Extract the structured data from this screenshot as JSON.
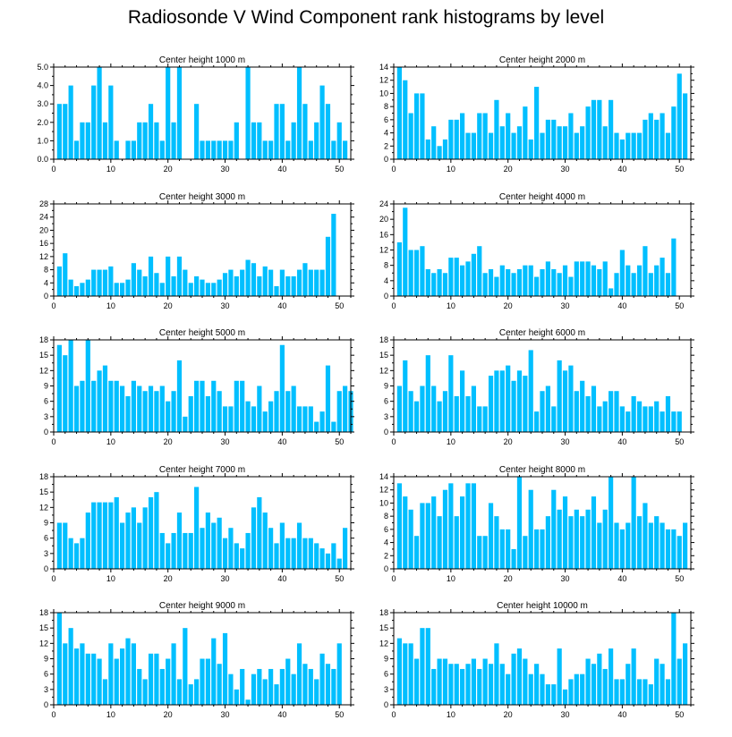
{
  "title": "Radiosonde V Wind Component rank histograms by level",
  "colors": {
    "bar": "#00bfff",
    "frame": "#000000"
  },
  "chart_data": [
    {
      "type": "bar",
      "title": "Center height 1000 m",
      "x_range": [
        0,
        52
      ],
      "xticks": [
        0,
        10,
        20,
        30,
        40,
        50
      ],
      "ylim": [
        0,
        5
      ],
      "yticks": [
        "0.0",
        "1.0",
        "2.0",
        "3.0",
        "4.0",
        "5.0"
      ],
      "values": [
        3,
        3,
        4,
        1,
        2,
        2,
        4,
        5,
        2,
        4,
        1,
        0,
        1,
        1,
        2,
        2,
        3,
        2,
        1,
        5,
        2,
        5,
        0,
        0,
        3,
        1,
        1,
        1,
        1,
        1,
        1,
        2,
        0,
        5,
        2,
        2,
        1,
        1,
        3,
        3,
        1,
        2,
        5,
        3,
        1,
        2,
        4,
        3,
        1,
        2,
        1
      ]
    },
    {
      "type": "bar",
      "title": "Center height 2000 m",
      "x_range": [
        0,
        52
      ],
      "xticks": [
        0,
        10,
        20,
        30,
        40,
        50
      ],
      "ylim": [
        0,
        14
      ],
      "yticks": [
        "0",
        "2",
        "4",
        "6",
        "8",
        "10",
        "12",
        "14"
      ],
      "values": [
        14,
        12,
        7,
        10,
        10,
        3,
        5,
        2,
        3,
        6,
        6,
        7,
        4,
        4,
        7,
        7,
        4,
        9,
        5,
        7,
        4,
        5,
        8,
        3,
        11,
        4,
        6,
        6,
        5,
        5,
        7,
        4,
        5,
        8,
        9,
        9,
        5,
        9,
        4,
        3,
        4,
        4,
        4,
        6,
        7,
        6,
        7,
        4,
        8,
        13,
        10
      ]
    },
    {
      "type": "bar",
      "title": "Center height 3000 m",
      "x_range": [
        0,
        52
      ],
      "xticks": [
        0,
        10,
        20,
        30,
        40,
        50
      ],
      "ylim": [
        0,
        28
      ],
      "yticks": [
        "0",
        "4",
        "8",
        "12",
        "16",
        "20",
        "24",
        "28"
      ],
      "values": [
        9,
        13,
        5,
        3,
        4,
        5,
        8,
        8,
        8,
        9,
        4,
        4,
        5,
        10,
        8,
        6,
        12,
        7,
        4,
        12,
        6,
        12,
        8,
        4,
        6,
        5,
        4,
        4,
        5,
        7,
        8,
        6,
        8,
        11,
        10,
        6,
        9,
        8,
        3,
        8,
        6,
        6,
        8,
        10,
        8,
        8,
        8,
        18,
        25
      ]
    },
    {
      "type": "bar",
      "title": "Center height 4000 m",
      "x_range": [
        0,
        52
      ],
      "xticks": [
        0,
        10,
        20,
        30,
        40,
        50
      ],
      "ylim": [
        0,
        24
      ],
      "yticks": [
        "0",
        "4",
        "8",
        "12",
        "16",
        "20",
        "24"
      ],
      "values": [
        14,
        23,
        12,
        12,
        13,
        7,
        6,
        7,
        6,
        10,
        10,
        8,
        9,
        11,
        13,
        6,
        7,
        5,
        8,
        7,
        6,
        7,
        8,
        8,
        5,
        7,
        9,
        7,
        6,
        8,
        5,
        9,
        9,
        9,
        8,
        7,
        9,
        2,
        6,
        12,
        8,
        6,
        8,
        13,
        6,
        8,
        10,
        6,
        15
      ]
    },
    {
      "type": "bar",
      "title": "Center height 5000 m",
      "x_range": [
        0,
        52
      ],
      "xticks": [
        0,
        10,
        20,
        30,
        40,
        50
      ],
      "ylim": [
        0,
        18
      ],
      "yticks": [
        "0",
        "3",
        "6",
        "9",
        "12",
        "15",
        "18"
      ],
      "values": [
        17,
        15,
        18,
        9,
        10,
        18,
        10,
        12,
        13,
        10,
        10,
        9,
        7,
        10,
        9,
        8,
        9,
        8,
        9,
        6,
        8,
        14,
        3,
        7,
        10,
        10,
        7,
        10,
        8,
        5,
        5,
        10,
        10,
        6,
        5,
        9,
        4,
        6,
        8,
        17,
        8,
        9,
        5,
        5,
        5,
        2,
        4,
        13,
        2,
        8,
        9,
        8
      ]
    },
    {
      "type": "bar",
      "title": "Center height 6000 m",
      "x_range": [
        0,
        52
      ],
      "xticks": [
        0,
        10,
        20,
        30,
        40,
        50
      ],
      "ylim": [
        0,
        18
      ],
      "yticks": [
        "0",
        "3",
        "6",
        "9",
        "12",
        "15",
        "18"
      ],
      "values": [
        9,
        14,
        8,
        6,
        9,
        15,
        9,
        6,
        8,
        15,
        7,
        12,
        7,
        9,
        5,
        5,
        11,
        12,
        12,
        13,
        10,
        12,
        11,
        16,
        4,
        8,
        9,
        5,
        14,
        12,
        13,
        8,
        10,
        7,
        9,
        5,
        6,
        8,
        8,
        5,
        4,
        7,
        6,
        5,
        5,
        6,
        4,
        7,
        4,
        4
      ]
    },
    {
      "type": "bar",
      "title": "Center height 7000 m",
      "x_range": [
        0,
        52
      ],
      "xticks": [
        0,
        10,
        20,
        30,
        40,
        50
      ],
      "ylim": [
        0,
        18
      ],
      "yticks": [
        "0",
        "3",
        "6",
        "9",
        "12",
        "15",
        "18"
      ],
      "values": [
        9,
        9,
        6,
        5,
        6,
        11,
        13,
        13,
        13,
        13,
        14,
        9,
        11,
        12,
        9,
        12,
        14,
        15,
        7,
        5,
        7,
        11,
        7,
        7,
        16,
        8,
        11,
        9,
        10,
        6,
        8,
        5,
        4,
        7,
        12,
        14,
        11,
        8,
        5,
        9,
        6,
        6,
        9,
        6,
        6,
        5,
        4,
        3,
        5,
        2,
        8
      ]
    },
    {
      "type": "bar",
      "title": "Center height 8000 m",
      "x_range": [
        0,
        52
      ],
      "xticks": [
        0,
        10,
        20,
        30,
        40,
        50
      ],
      "ylim": [
        0,
        14
      ],
      "yticks": [
        "0",
        "2",
        "4",
        "6",
        "8",
        "10",
        "12",
        "14"
      ],
      "values": [
        13,
        11,
        9,
        5,
        10,
        10,
        11,
        8,
        12,
        13,
        8,
        11,
        13,
        13,
        5,
        5,
        10,
        8,
        6,
        6,
        3,
        14,
        5,
        12,
        6,
        6,
        8,
        12,
        9,
        11,
        8,
        9,
        8,
        9,
        11,
        7,
        9,
        14,
        7,
        6,
        7,
        14,
        8,
        10,
        7,
        8,
        7,
        6,
        6,
        5,
        7
      ]
    },
    {
      "type": "bar",
      "title": "Center height 9000 m",
      "x_range": [
        0,
        52
      ],
      "xticks": [
        0,
        10,
        20,
        30,
        40,
        50
      ],
      "ylim": [
        0,
        18
      ],
      "yticks": [
        "0",
        "3",
        "6",
        "9",
        "12",
        "15",
        "18"
      ],
      "values": [
        18,
        12,
        15,
        11,
        12,
        10,
        10,
        9,
        5,
        12,
        9,
        11,
        13,
        12,
        7,
        5,
        10,
        10,
        7,
        9,
        12,
        5,
        15,
        4,
        5,
        9,
        9,
        13,
        8,
        14,
        6,
        3,
        7,
        1,
        6,
        7,
        5,
        7,
        4,
        7,
        9,
        6,
        12,
        8,
        7,
        5,
        10,
        8,
        7,
        12
      ]
    },
    {
      "type": "bar",
      "title": "Center height 10000 m",
      "x_range": [
        0,
        52
      ],
      "xticks": [
        0,
        10,
        20,
        30,
        40,
        50
      ],
      "ylim": [
        0,
        18
      ],
      "yticks": [
        "0",
        "3",
        "6",
        "9",
        "12",
        "15",
        "18"
      ],
      "values": [
        13,
        12,
        12,
        9,
        15,
        15,
        7,
        9,
        9,
        8,
        8,
        7,
        8,
        9,
        7,
        9,
        8,
        12,
        8,
        6,
        10,
        11,
        9,
        6,
        8,
        6,
        4,
        4,
        11,
        3,
        5,
        6,
        6,
        9,
        8,
        10,
        7,
        11,
        5,
        5,
        8,
        11,
        5,
        5,
        4,
        9,
        8,
        5,
        18,
        9,
        12
      ]
    }
  ]
}
